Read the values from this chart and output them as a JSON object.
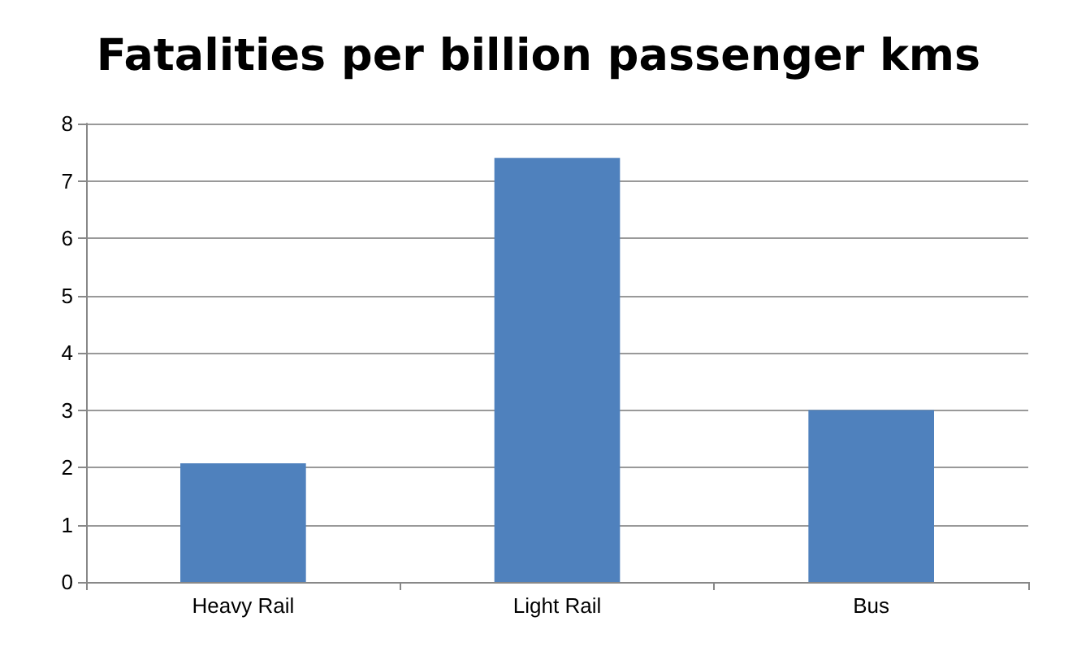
{
  "chart_data": {
    "type": "bar",
    "title": "Fatalities per billion passenger kms",
    "categories": [
      "Heavy Rail",
      "Light Rail",
      "Bus"
    ],
    "values": [
      2.07,
      7.4,
      3.0
    ],
    "color": "#4f81bd",
    "ylim": [
      0,
      8
    ],
    "yticks": [
      0,
      1,
      2,
      3,
      4,
      5,
      6,
      7,
      8
    ],
    "grid": "y"
  }
}
